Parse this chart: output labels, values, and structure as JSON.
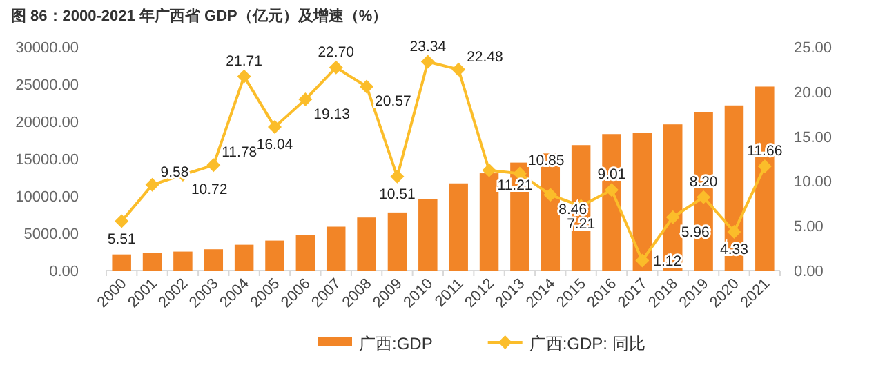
{
  "chart_data": {
    "type": "bar",
    "title": "图 86：2000-2021 年广西省 GDP（亿元）及增速（%）",
    "categories": [
      "2000",
      "2001",
      "2002",
      "2003",
      "2004",
      "2005",
      "2006",
      "2007",
      "2008",
      "2009",
      "2010",
      "2011",
      "2012",
      "2013",
      "2014",
      "2015",
      "2016",
      "2017",
      "2018",
      "2019",
      "2020",
      "2021"
    ],
    "series": [
      {
        "name": "广西:GDP",
        "color": "#f28527",
        "values": [
          2160,
          2350,
          2540,
          2850,
          3460,
          4020,
          4760,
          5880,
          7110,
          7790,
          9590,
          11690,
          13050,
          14480,
          15710,
          16830,
          18310,
          18500,
          19610,
          21220,
          22150,
          24680
        ]
      },
      {
        "name": "广西:GDP: 同比",
        "type": "line",
        "axis": "y2",
        "color": "#fbbd2a",
        "marker": "diamond",
        "data_labels": true,
        "values": [
          5.51,
          9.58,
          10.72,
          11.78,
          21.71,
          16.04,
          19.13,
          22.7,
          20.57,
          10.51,
          23.34,
          22.48,
          11.21,
          10.85,
          8.46,
          7.21,
          9.01,
          1.12,
          5.96,
          8.2,
          4.33,
          11.66
        ],
        "value_labels": [
          "5.51",
          "9.58",
          "10.72",
          "11.78",
          "21.71",
          "16.04",
          "19.13",
          "22.70",
          "20.57",
          "10.51",
          "23.34",
          "22.48",
          "11.21",
          "10.85",
          "8.46",
          "7.21",
          "9.01",
          "1.12",
          "5.96",
          "8.20",
          "4.33",
          "11.66"
        ]
      }
    ],
    "ylim": [
      0,
      30000
    ],
    "yticks": [
      {
        "value": 0,
        "label": "0.00"
      },
      {
        "value": 5000,
        "label": "5000.00"
      },
      {
        "value": 10000,
        "label": "10000.00"
      },
      {
        "value": 15000,
        "label": "15000.00"
      },
      {
        "value": 20000,
        "label": "20000.00"
      },
      {
        "value": 25000,
        "label": "25000.00"
      },
      {
        "value": 30000,
        "label": "30000.00"
      }
    ],
    "y2lim": [
      0,
      25
    ],
    "y2ticks": [
      {
        "value": 0,
        "label": "0.00"
      },
      {
        "value": 5,
        "label": "5.00"
      },
      {
        "value": 10,
        "label": "10.00"
      },
      {
        "value": 15,
        "label": "15.00"
      },
      {
        "value": 20,
        "label": "20.00"
      },
      {
        "value": 25,
        "label": "25.00"
      }
    ],
    "grid": false,
    "legend": "bottom"
  }
}
